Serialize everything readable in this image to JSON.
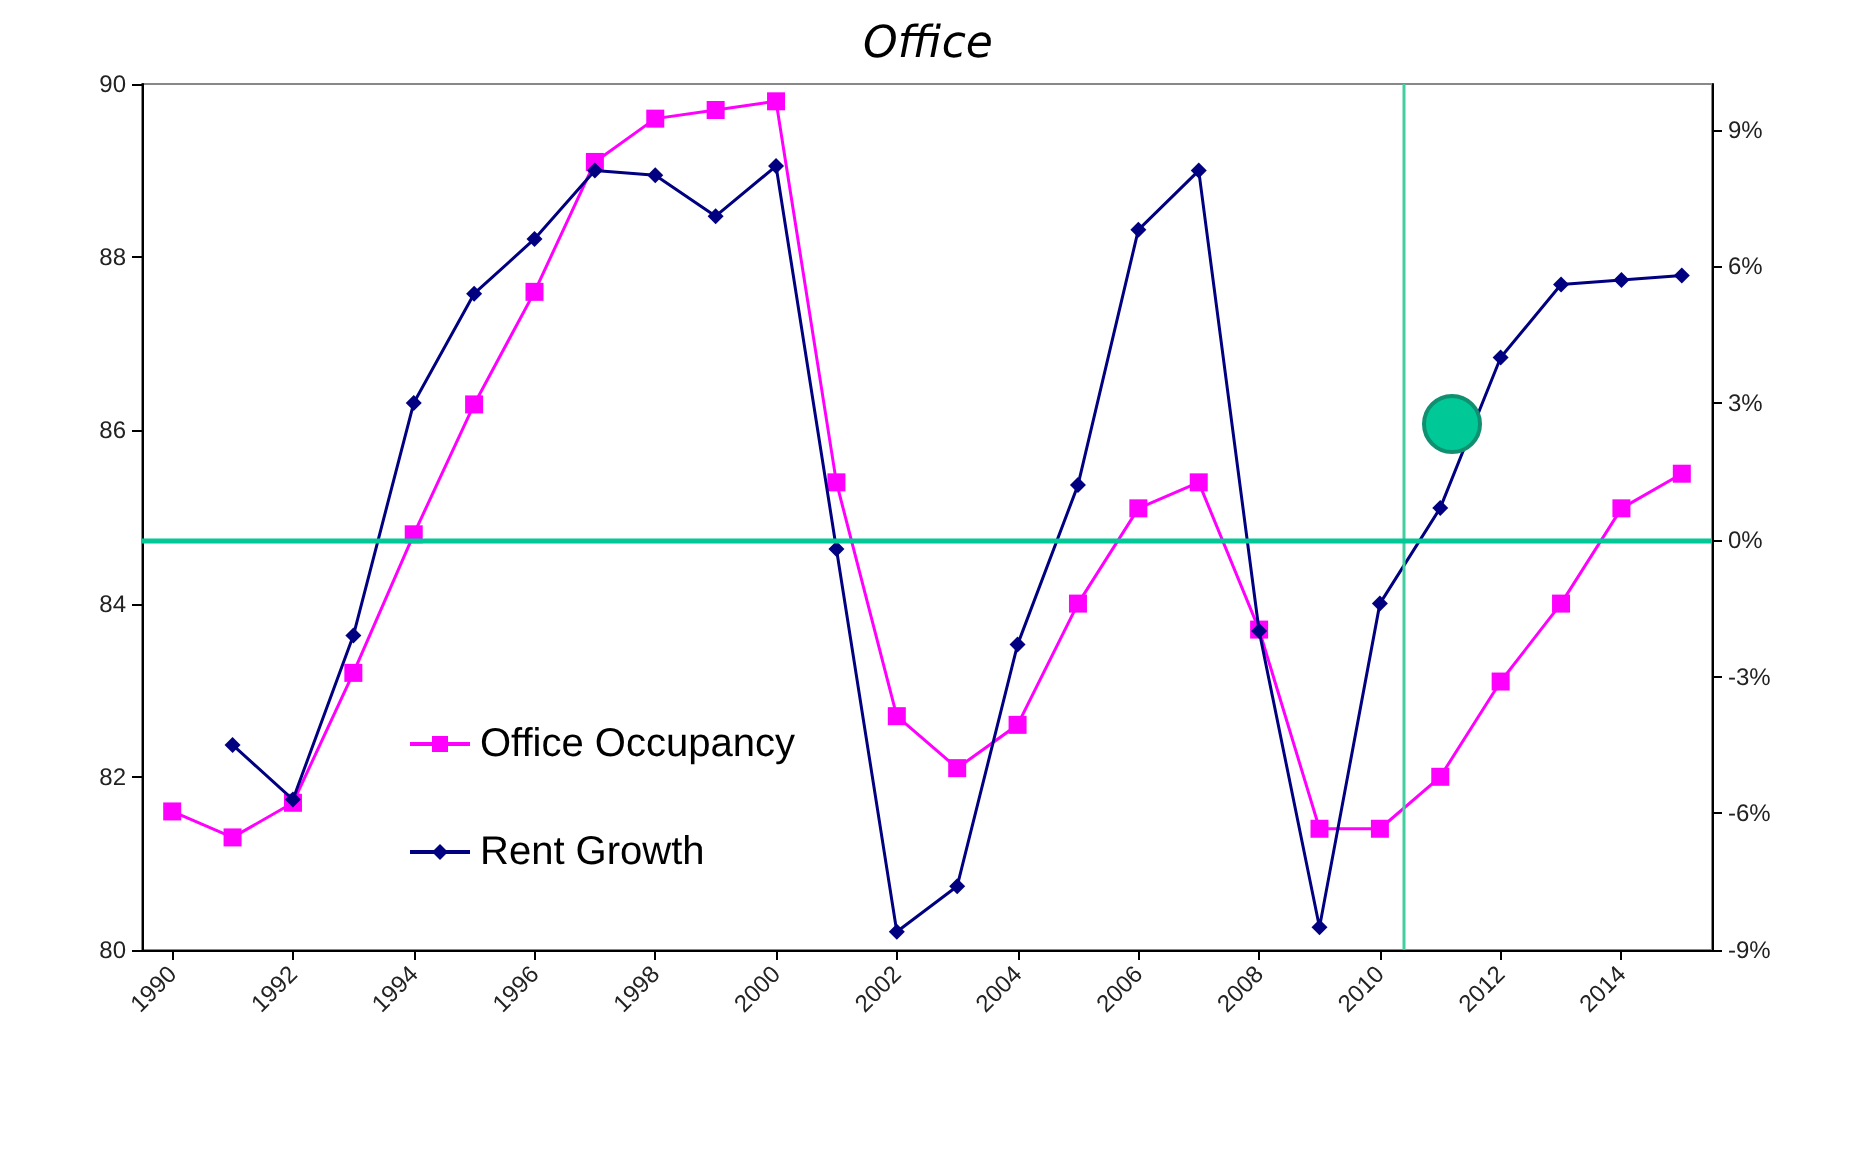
{
  "chart_data": {
    "type": "line",
    "title": "Office",
    "x": [
      1990,
      1991,
      1992,
      1993,
      1994,
      1995,
      1996,
      1997,
      1998,
      1999,
      2000,
      2001,
      2002,
      2003,
      2004,
      2005,
      2006,
      2007,
      2008,
      2009,
      2010,
      2011,
      2012,
      2013,
      2014,
      2015
    ],
    "series": [
      {
        "name": "Office Occupancy",
        "color": "#ff00ff",
        "marker": "square",
        "values": [
          81.6,
          81.3,
          81.7,
          83.2,
          84.8,
          86.3,
          87.6,
          89.1,
          89.6,
          89.7,
          89.8,
          85.4,
          82.7,
          82.1,
          82.6,
          84.0,
          85.1,
          85.4,
          83.7,
          81.4,
          81.4,
          82.0,
          83.1,
          84.0,
          85.1,
          85.5
        ]
      },
      {
        "name": "Rent Growth",
        "color": "#000080",
        "marker": "diamond",
        "axis": "y2",
        "values": [
          null,
          -4.5,
          -5.7,
          -2.1,
          3.0,
          5.4,
          6.6,
          8.1,
          8.0,
          7.1,
          8.2,
          -0.2,
          -8.6,
          -7.6,
          -2.3,
          1.2,
          6.8,
          8.1,
          -2.0,
          -8.5,
          -1.4,
          0.7,
          4.0,
          5.6,
          5.7,
          5.8
        ]
      }
    ],
    "xlim": [
      1989.5,
      2015.5
    ],
    "xticks": [
      1990,
      1992,
      1994,
      1996,
      1998,
      2000,
      2002,
      2004,
      2006,
      2008,
      2010,
      2012,
      2014
    ],
    "ylim": [
      80,
      90
    ],
    "yticks": [
      80,
      82,
      84,
      86,
      88,
      90
    ],
    "y2lim": [
      -9,
      10
    ],
    "y2ticks": [
      {
        "value": -9,
        "label": "-9%"
      },
      {
        "value": -6,
        "label": "-6%"
      },
      {
        "value": -3,
        "label": "-3%"
      },
      {
        "value": 0,
        "label": "0%"
      },
      {
        "value": 3,
        "label": "3%"
      },
      {
        "value": 6,
        "label": "6%"
      },
      {
        "value": 9,
        "label": "9%"
      }
    ],
    "ref_lines": [
      {
        "axis": "y2",
        "value": 0,
        "color": "#00c896"
      },
      {
        "axis": "x",
        "value": 2010.4,
        "color": "#40d0a0"
      }
    ],
    "grid": false,
    "legend": "bottom left",
    "line_style": "solid"
  }
}
